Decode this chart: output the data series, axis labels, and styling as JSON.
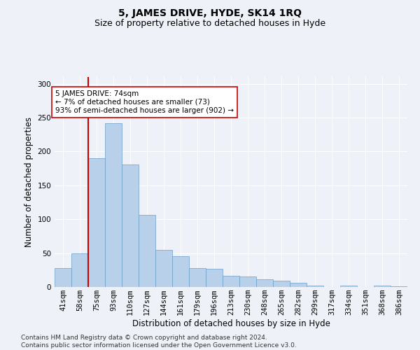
{
  "title": "5, JAMES DRIVE, HYDE, SK14 1RQ",
  "subtitle": "Size of property relative to detached houses in Hyde",
  "xlabel": "Distribution of detached houses by size in Hyde",
  "ylabel": "Number of detached properties",
  "categories": [
    "41sqm",
    "58sqm",
    "75sqm",
    "93sqm",
    "110sqm",
    "127sqm",
    "144sqm",
    "161sqm",
    "179sqm",
    "196sqm",
    "213sqm",
    "230sqm",
    "248sqm",
    "265sqm",
    "282sqm",
    "299sqm",
    "317sqm",
    "334sqm",
    "351sqm",
    "368sqm",
    "386sqm"
  ],
  "values": [
    28,
    50,
    190,
    242,
    181,
    106,
    55,
    45,
    28,
    27,
    17,
    16,
    11,
    9,
    6,
    2,
    0,
    2,
    0,
    2,
    1
  ],
  "bar_color": "#b8d0ea",
  "bar_edge_color": "#6a9fc8",
  "vline_color": "#cc0000",
  "vline_x_index": 2,
  "annotation_text": "5 JAMES DRIVE: 74sqm\n← 7% of detached houses are smaller (73)\n93% of semi-detached houses are larger (902) →",
  "annotation_box_facecolor": "#ffffff",
  "annotation_box_edgecolor": "#cc0000",
  "footer_text": "Contains HM Land Registry data © Crown copyright and database right 2024.\nContains public sector information licensed under the Open Government Licence v3.0.",
  "bg_color": "#eef2f8",
  "ylim": [
    0,
    310
  ],
  "title_fontsize": 10,
  "subtitle_fontsize": 9,
  "axis_label_fontsize": 8.5,
  "tick_fontsize": 7.5,
  "annotation_fontsize": 7.5,
  "footer_fontsize": 6.5
}
